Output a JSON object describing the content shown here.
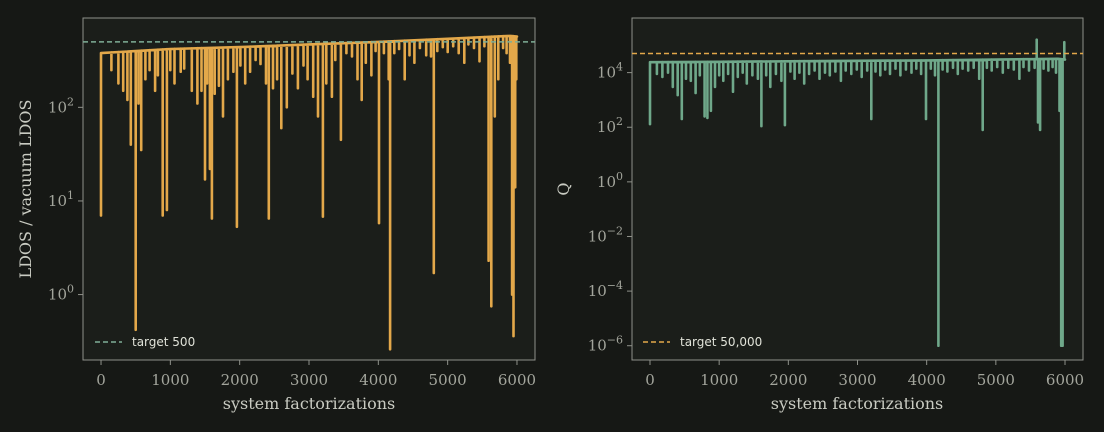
{
  "chart_data": [
    {
      "type": "line",
      "xlabel": "system factorizations",
      "ylabel": "LDOS / vacuum LDOS",
      "xlim": [
        -260,
        6260
      ],
      "ylim": [
        0.2,
        900
      ],
      "yscale": "log",
      "grid": false,
      "legend_position": "lower-left",
      "x_ticks": [
        "0",
        "1000",
        "2000",
        "3000",
        "4000",
        "5000",
        "6000"
      ],
      "y_ticks": [
        {
          "value": 1,
          "base": "10",
          "exp": "0"
        },
        {
          "value": 10,
          "base": "10",
          "exp": "1"
        },
        {
          "value": 100,
          "base": "10",
          "exp": "2"
        }
      ],
      "series_color": "#e3a84a",
      "reference": {
        "label": "target 500",
        "value": 500,
        "color": "#7fae97"
      },
      "series": [
        {
          "envelope": [
            [
              0,
              380
            ],
            [
              1000,
              420
            ],
            [
              2000,
              440
            ],
            [
              3000,
              470
            ],
            [
              4000,
              500
            ],
            [
              5000,
              540
            ],
            [
              5900,
              580
            ],
            [
              6000,
              570
            ]
          ],
          "dips": [
            [
              0,
              7
            ],
            [
              150,
              250
            ],
            [
              250,
              180
            ],
            [
              320,
              150
            ],
            [
              380,
              120
            ],
            [
              430,
              40
            ],
            [
              500,
              0.42
            ],
            [
              540,
              110
            ],
            [
              580,
              35
            ],
            [
              640,
              200
            ],
            [
              700,
              250
            ],
            [
              780,
              150
            ],
            [
              820,
              220
            ],
            [
              890,
              7
            ],
            [
              950,
              8
            ],
            [
              1000,
              250
            ],
            [
              1060,
              180
            ],
            [
              1150,
              240
            ],
            [
              1200,
              260
            ],
            [
              1310,
              150
            ],
            [
              1390,
              110
            ],
            [
              1450,
              150
            ],
            [
              1500,
              17
            ],
            [
              1530,
              180
            ],
            [
              1570,
              22
            ],
            [
              1600,
              6.5
            ],
            [
              1640,
              140
            ],
            [
              1700,
              170
            ],
            [
              1760,
              80
            ],
            [
              1830,
              200
            ],
            [
              1910,
              240
            ],
            [
              1960,
              5.3
            ],
            [
              2010,
              280
            ],
            [
              2080,
              180
            ],
            [
              2150,
              240
            ],
            [
              2230,
              320
            ],
            [
              2300,
              290
            ],
            [
              2380,
              180
            ],
            [
              2420,
              6.5
            ],
            [
              2480,
              160
            ],
            [
              2540,
              200
            ],
            [
              2600,
              60
            ],
            [
              2680,
              100
            ],
            [
              2760,
              230
            ],
            [
              2840,
              160
            ],
            [
              2920,
              280
            ],
            [
              2980,
              200
            ],
            [
              3060,
              130
            ],
            [
              3130,
              80
            ],
            [
              3200,
              6.8
            ],
            [
              3250,
              180
            ],
            [
              3330,
              130
            ],
            [
              3380,
              320
            ],
            [
              3460,
              45
            ],
            [
              3540,
              380
            ],
            [
              3620,
              350
            ],
            [
              3700,
              200
            ],
            [
              3760,
              120
            ],
            [
              3820,
              300
            ],
            [
              3900,
              220
            ],
            [
              3960,
              400
            ],
            [
              4010,
              5.8
            ],
            [
              4080,
              380
            ],
            [
              4150,
              200
            ],
            [
              4170,
              0.26
            ],
            [
              4230,
              380
            ],
            [
              4300,
              420
            ],
            [
              4380,
              200
            ],
            [
              4450,
              360
            ],
            [
              4520,
              300
            ],
            [
              4600,
              430
            ],
            [
              4690,
              360
            ],
            [
              4760,
              350
            ],
            [
              4800,
              1.7
            ],
            [
              4850,
              400
            ],
            [
              4930,
              440
            ],
            [
              5000,
              390
            ],
            [
              5080,
              450
            ],
            [
              5160,
              380
            ],
            [
              5240,
              300
            ],
            [
              5300,
              470
            ],
            [
              5380,
              430
            ],
            [
              5460,
              310
            ],
            [
              5530,
              450
            ],
            [
              5590,
              2.3
            ],
            [
              5630,
              0.75
            ],
            [
              5680,
              80
            ],
            [
              5730,
              200
            ],
            [
              5800,
              430
            ],
            [
              5850,
              380
            ],
            [
              5900,
              300
            ],
            [
              5930,
              1.0
            ],
            [
              5950,
              0.36
            ],
            [
              5975,
              14
            ],
            [
              5990,
              200
            ]
          ]
        }
      ]
    },
    {
      "type": "line",
      "xlabel": "system factorizations",
      "ylabel": "Q",
      "xlim": [
        -260,
        6260
      ],
      "ylim": [
        3e-07,
        1000000.0
      ],
      "yscale": "log",
      "grid": false,
      "legend_position": "lower-left",
      "x_ticks": [
        "0",
        "1000",
        "2000",
        "3000",
        "4000",
        "5000",
        "6000"
      ],
      "y_ticks": [
        {
          "value": 1e-06,
          "base": "10",
          "exp": "−6"
        },
        {
          "value": 0.0001,
          "base": "10",
          "exp": "−4"
        },
        {
          "value": 0.01,
          "base": "10",
          "exp": "−2"
        },
        {
          "value": 1,
          "base": "10",
          "exp": "0"
        },
        {
          "value": 100,
          "base": "10",
          "exp": "2"
        },
        {
          "value": 10000,
          "base": "10",
          "exp": "4"
        }
      ],
      "series_color": "#6fa88a",
      "reference": {
        "label": "target 50,000",
        "value": 50000,
        "color": "#e3a84a"
      },
      "series": [
        {
          "envelope": [
            [
              0,
              24000
            ],
            [
              1000,
              25000
            ],
            [
              2000,
              26000
            ],
            [
              3000,
              27000
            ],
            [
              4000,
              28000
            ],
            [
              5000,
              30000
            ],
            [
              5900,
              32000
            ],
            [
              6000,
              30000
            ]
          ],
          "dips": [
            [
              0,
              130
            ],
            [
              100,
              9000
            ],
            [
              180,
              7000
            ],
            [
              260,
              10000
            ],
            [
              330,
              3000
            ],
            [
              400,
              1500
            ],
            [
              460,
              200
            ],
            [
              520,
              6000
            ],
            [
              590,
              5000
            ],
            [
              660,
              1800
            ],
            [
              720,
              8000
            ],
            [
              790,
              250
            ],
            [
              830,
              220
            ],
            [
              880,
              400
            ],
            [
              940,
              3000
            ],
            [
              1000,
              8000
            ],
            [
              1060,
              5000
            ],
            [
              1130,
              9000
            ],
            [
              1200,
              2000
            ],
            [
              1270,
              7000
            ],
            [
              1340,
              10000
            ],
            [
              1400,
              4000
            ],
            [
              1480,
              8000
            ],
            [
              1560,
              6000
            ],
            [
              1610,
              110
            ],
            [
              1680,
              8000
            ],
            [
              1740,
              3000
            ],
            [
              1820,
              9000
            ],
            [
              1900,
              5000
            ],
            [
              1950,
              120
            ],
            [
              2030,
              11000
            ],
            [
              2090,
              6000
            ],
            [
              2160,
              10000
            ],
            [
              2230,
              4000
            ],
            [
              2300,
              9000
            ],
            [
              2380,
              12000
            ],
            [
              2450,
              6000
            ],
            [
              2530,
              10000
            ],
            [
              2600,
              8000
            ],
            [
              2680,
              11000
            ],
            [
              2760,
              5000
            ],
            [
              2830,
              12000
            ],
            [
              2910,
              9000
            ],
            [
              2990,
              13000
            ],
            [
              3060,
              7000
            ],
            [
              3140,
              12000
            ],
            [
              3200,
              200
            ],
            [
              3260,
              11000
            ],
            [
              3330,
              8000
            ],
            [
              3400,
              13000
            ],
            [
              3470,
              9000
            ],
            [
              3550,
              14000
            ],
            [
              3620,
              8000
            ],
            [
              3700,
              13000
            ],
            [
              3780,
              10000
            ],
            [
              3850,
              14000
            ],
            [
              3920,
              9000
            ],
            [
              3990,
              200
            ],
            [
              4060,
              14000
            ],
            [
              4120,
              8000
            ],
            [
              4170,
              1e-06
            ],
            [
              4230,
              13000
            ],
            [
              4300,
              11000
            ],
            [
              4380,
              15000
            ],
            [
              4450,
              9000
            ],
            [
              4520,
              14000
            ],
            [
              4600,
              12000
            ],
            [
              4680,
              15000
            ],
            [
              4760,
              6000
            ],
            [
              4810,
              80
            ],
            [
              4870,
              15000
            ],
            [
              4940,
              12000
            ],
            [
              5020,
              16000
            ],
            [
              5100,
              10000
            ],
            [
              5180,
              15000
            ],
            [
              5260,
              13000
            ],
            [
              5340,
              6000
            ],
            [
              5400,
              16000
            ],
            [
              5480,
              12000
            ],
            [
              5560,
              15000
            ],
            [
              5590,
              160000
            ],
            [
              5610,
              150
            ],
            [
              5640,
              80
            ],
            [
              5690,
              14000
            ],
            [
              5760,
              12000
            ],
            [
              5820,
              16000
            ],
            [
              5870,
              10000
            ],
            [
              5920,
              400
            ],
            [
              5945,
              1e-06
            ],
            [
              5965,
              1e-06
            ],
            [
              5990,
              130000
            ]
          ]
        }
      ]
    }
  ]
}
